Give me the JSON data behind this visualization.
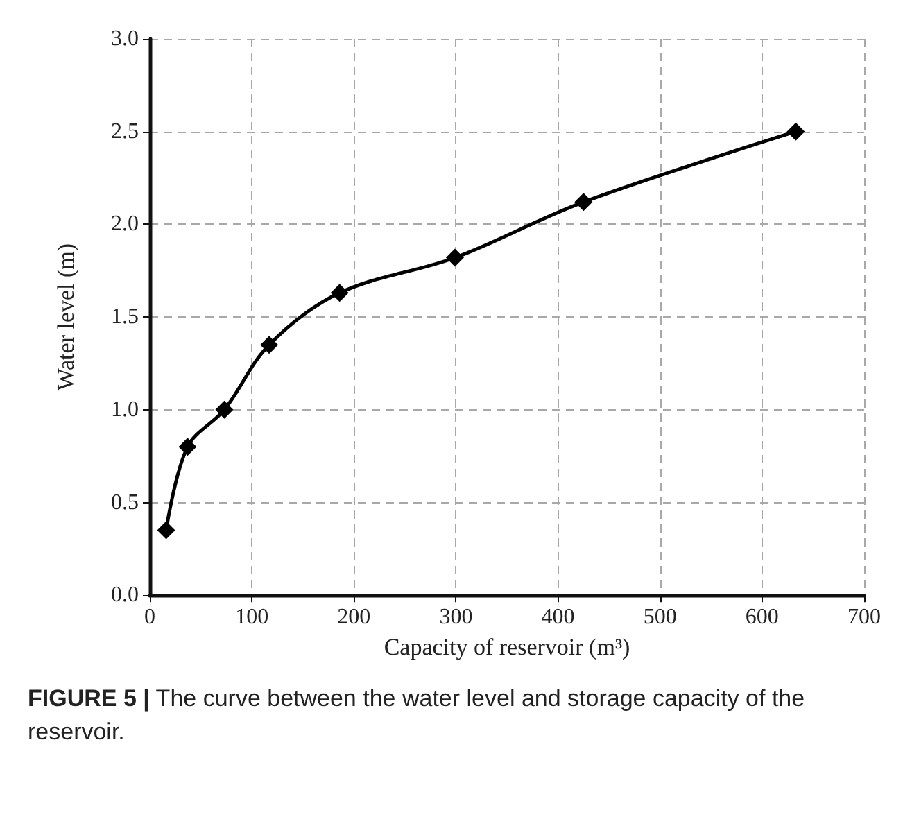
{
  "chart_data": {
    "type": "line",
    "xlabel": "Capacity of reservoir (m³)",
    "ylabel": "Water level (m)",
    "annotations": [
      "FIGURE 5 | The curve between the water level and storage capacity of the reservoir."
    ],
    "x": [
      16,
      37,
      73,
      117,
      186,
      299,
      425,
      633
    ],
    "series": [
      {
        "color": "#000000",
        "values": [
          0.35,
          0.8,
          1.0,
          1.35,
          1.63,
          1.82,
          2.12,
          2.5
        ]
      }
    ],
    "xlim": [
      0,
      700
    ],
    "xticks": [
      0,
      100,
      200,
      300,
      400,
      500,
      600,
      700
    ],
    "ylim": [
      0,
      3
    ],
    "yticks": [
      {
        "value": 0,
        "label": "0.0"
      },
      {
        "value": 0.5,
        "label": "0.5"
      },
      {
        "value": 1,
        "label": "1.0"
      },
      {
        "value": 1.5,
        "label": "1.5"
      },
      {
        "value": 2,
        "label": "2.0"
      },
      {
        "value": 2.5,
        "label": "2.5"
      },
      {
        "value": 3,
        "label": "3.0"
      }
    ],
    "grid": true,
    "marker": "diamond",
    "line_style": "solid"
  }
}
